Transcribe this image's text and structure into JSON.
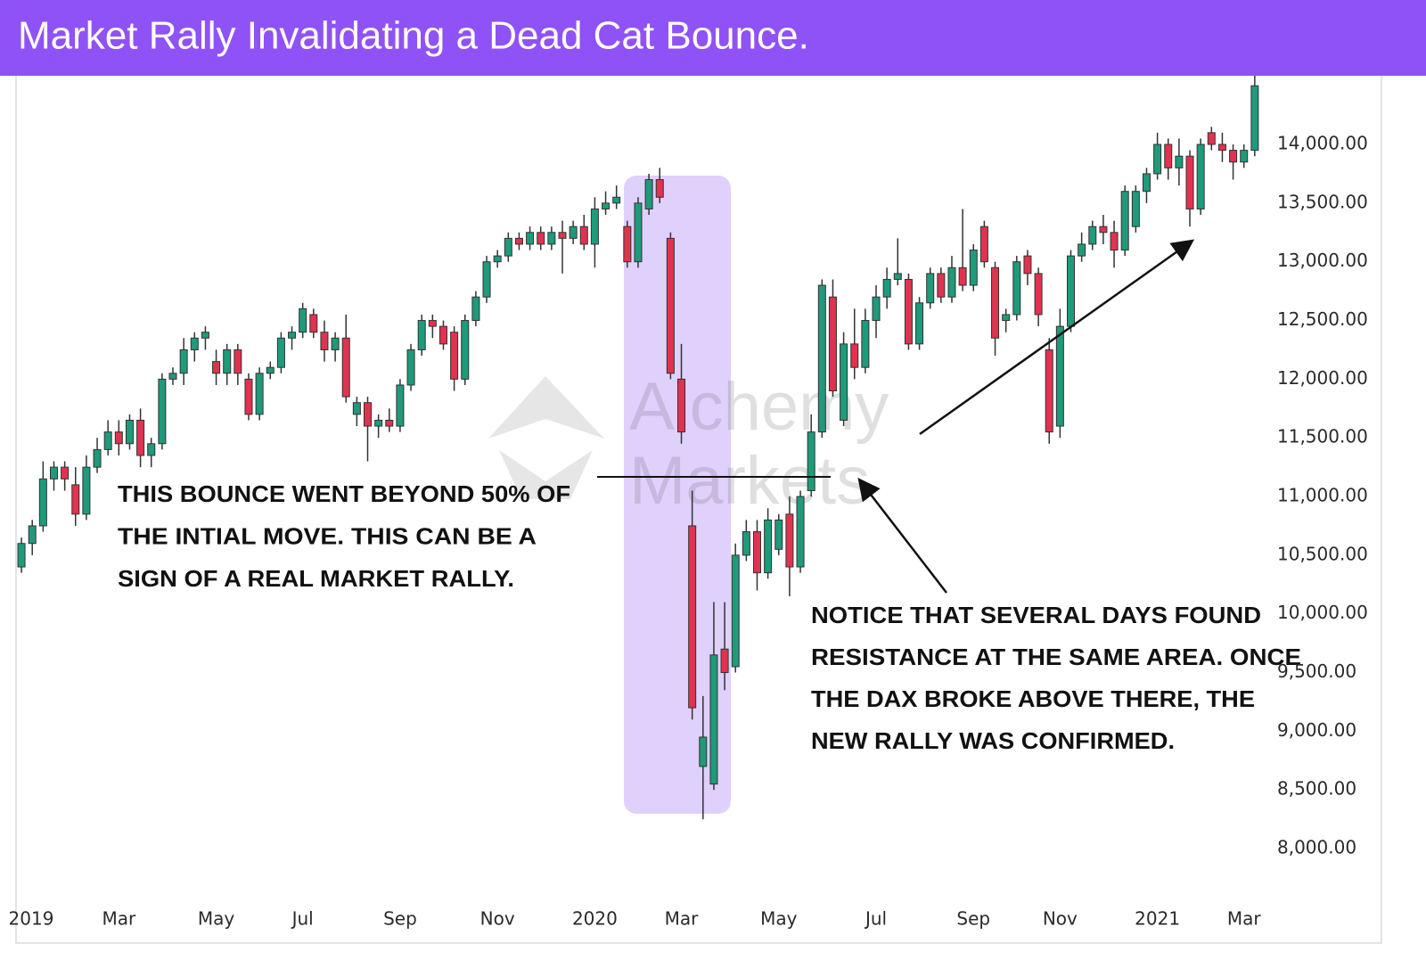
{
  "chart_data": {
    "type": "candlestick",
    "title": "Market Rally Invalidating a Dead Cat Bounce.",
    "up_color": "#1f9a7a",
    "down_color": "#e0334f",
    "open": [
      10400,
      10600,
      10750,
      11150,
      11250,
      11100,
      10850,
      11250,
      11400,
      11550,
      11450,
      11650,
      11350,
      11450,
      12000,
      12050,
      12250,
      12350,
      12150,
      12050,
      12250,
      12000,
      11700,
      12050,
      12100,
      12350,
      12400,
      12550,
      12400,
      12250,
      12350,
      11700,
      11800,
      11600,
      11650,
      11600,
      11950,
      12250,
      12500,
      12450,
      12400,
      12000,
      12500,
      12700,
      13000,
      13050,
      13200,
      13150,
      13250,
      13150,
      13250,
      13200,
      13300,
      13150,
      13450,
      13500,
      13300,
      13000,
      13450,
      13700,
      13200,
      12000,
      10750,
      8700,
      8550,
      9700,
      9550,
      10500,
      10700,
      10350,
      10550,
      10850,
      10400,
      11050,
      11550,
      12700,
      11650,
      12300,
      12100,
      12500,
      12700,
      12850,
      12850,
      12300,
      12650,
      12900,
      12700,
      12950,
      12800,
      13300,
      12950,
      12500,
      12550,
      13050,
      12900,
      12250,
      11600,
      12450,
      13050,
      13150,
      13300,
      13250,
      13100,
      13300,
      13600,
      13750,
      14000,
      13800,
      13900,
      13450,
      14100,
      14000,
      13950,
      13850,
      13950
    ],
    "high": [
      10650,
      10800,
      11300,
      11300,
      11300,
      11250,
      11350,
      11500,
      11650,
      11650,
      11700,
      11750,
      11500,
      12050,
      12100,
      12350,
      12400,
      12450,
      12250,
      12300,
      12300,
      12050,
      12100,
      12150,
      12400,
      12450,
      12650,
      12600,
      12500,
      12400,
      12550,
      11850,
      11850,
      11700,
      11750,
      12000,
      12300,
      12550,
      12550,
      12500,
      12450,
      12550,
      12750,
      13050,
      13100,
      13250,
      13250,
      13300,
      13300,
      13300,
      13350,
      13350,
      13400,
      13550,
      13600,
      13650,
      13350,
      13550,
      13750,
      13800,
      13250,
      12300,
      11050,
      9300,
      10100,
      10100,
      10600,
      10800,
      10800,
      10900,
      10850,
      11000,
      11050,
      11700,
      12850,
      12850,
      12400,
      12600,
      12600,
      12800,
      12950,
      13200,
      12900,
      12700,
      12950,
      12950,
      13050,
      13450,
      13150,
      13350,
      13000,
      12600,
      13050,
      13100,
      12950,
      12350,
      12600,
      13100,
      13250,
      13350,
      13400,
      13350,
      13650,
      13650,
      13800,
      14100,
      14050,
      14050,
      13950,
      14050,
      14150,
      14100,
      14000,
      14000,
      14600
    ],
    "low": [
      10350,
      10500,
      10700,
      11050,
      11050,
      10750,
      10800,
      11200,
      11350,
      11350,
      11400,
      11250,
      11250,
      11400,
      11950,
      11950,
      12150,
      12250,
      11950,
      11950,
      11950,
      11650,
      11650,
      12000,
      12050,
      12250,
      12350,
      12350,
      12150,
      12150,
      11800,
      11600,
      11300,
      11500,
      11550,
      11550,
      11900,
      12200,
      12350,
      12250,
      11900,
      11950,
      12450,
      12650,
      12950,
      13000,
      13100,
      13100,
      13100,
      13100,
      12900,
      13150,
      13100,
      12950,
      13400,
      13450,
      12950,
      12950,
      13400,
      13500,
      12000,
      11450,
      9100,
      8250,
      8500,
      9350,
      9500,
      10450,
      10200,
      10300,
      10500,
      10150,
      10350,
      11000,
      11500,
      11850,
      11600,
      12000,
      12050,
      12350,
      12600,
      12800,
      12250,
      12250,
      12600,
      12650,
      12650,
      12750,
      12750,
      12950,
      12200,
      12400,
      12500,
      12800,
      12450,
      11450,
      11500,
      12400,
      13000,
      13100,
      13150,
      12950,
      13050,
      13250,
      13500,
      13700,
      13700,
      13650,
      13300,
      13400,
      13950,
      13850,
      13700,
      13800,
      13900
    ],
    "close": [
      10600,
      10750,
      11150,
      11250,
      11150,
      10850,
      11250,
      11400,
      11550,
      11450,
      11650,
      11350,
      11450,
      12000,
      12050,
      12250,
      12350,
      12400,
      12050,
      12250,
      12050,
      11700,
      12050,
      12100,
      12350,
      12400,
      12600,
      12400,
      12250,
      12350,
      11850,
      11800,
      11600,
      11650,
      11600,
      11950,
      12250,
      12500,
      12450,
      12300,
      12000,
      12500,
      12700,
      13000,
      13050,
      13200,
      13150,
      13250,
      13150,
      13250,
      13200,
      13300,
      13150,
      13450,
      13500,
      13550,
      13000,
      13500,
      13700,
      13550,
      12050,
      11550,
      9200,
      8950,
      9650,
      9500,
      10500,
      10700,
      10350,
      10800,
      10800,
      10400,
      11000,
      11550,
      12800,
      11900,
      12300,
      12100,
      12500,
      12700,
      12850,
      12900,
      12300,
      12650,
      12900,
      12700,
      12950,
      12800,
      13100,
      13000,
      12350,
      12550,
      13000,
      12900,
      12550,
      11550,
      12450,
      13050,
      13150,
      13300,
      13250,
      13100,
      13600,
      13600,
      13750,
      14000,
      13800,
      13900,
      13450,
      14000,
      14000,
      13950,
      13850,
      13950,
      14500
    ],
    "xlim": [
      -0.5,
      115
    ],
    "xticks": [
      {
        "value": 0.9,
        "label": "2019"
      },
      {
        "value": 9,
        "label": "Mar"
      },
      {
        "value": 18,
        "label": "May"
      },
      {
        "value": 26,
        "label": "Jul"
      },
      {
        "value": 35,
        "label": "Sep"
      },
      {
        "value": 44,
        "label": "Nov"
      },
      {
        "value": 53,
        "label": "2020"
      },
      {
        "value": 61,
        "label": "Mar"
      },
      {
        "value": 70,
        "label": "May"
      },
      {
        "value": 79,
        "label": "Jul"
      },
      {
        "value": 88,
        "label": "Sep"
      },
      {
        "value": 96,
        "label": "Nov"
      },
      {
        "value": 105,
        "label": "2021"
      },
      {
        "value": 113,
        "label": "Mar"
      }
    ],
    "ylim": [
      7560,
      14585
    ],
    "yticks": [
      {
        "value": 8000,
        "label": "8,000.00"
      },
      {
        "value": 8500,
        "label": "8,500.00"
      },
      {
        "value": 9000,
        "label": "9,000.00"
      },
      {
        "value": 9500,
        "label": "9,500.00"
      },
      {
        "value": 10000,
        "label": "10,000.00"
      },
      {
        "value": 10500,
        "label": "10,500.00"
      },
      {
        "value": 11000,
        "label": "11,000.00"
      },
      {
        "value": 11500,
        "label": "11,500.00"
      },
      {
        "value": 12000,
        "label": "12,000.00"
      },
      {
        "value": 12500,
        "label": "12,500.00"
      },
      {
        "value": 13000,
        "label": "13,000.00"
      },
      {
        "value": 13500,
        "label": "13,500.00"
      },
      {
        "value": 14000,
        "label": "14,000.00"
      }
    ],
    "annotations": [
      {
        "lines": [
          "THIS BOUNCE WENT BEYOND 50% OF",
          "THE INTIAL MOVE. THIS CAN BE A",
          "SIGN OF A REAL MARKET RALLY."
        ]
      },
      {
        "lines": [
          "NOTICE THAT SEVERAL DAYS FOUND",
          "RESISTANCE AT THE SAME AREA. ONCE",
          "THE DAX BROKE ABOVE THERE, THE",
          "NEW RALLY WAS CONFIRMED."
        ]
      }
    ],
    "watermark": [
      "Alchemy",
      "Markets"
    ]
  }
}
